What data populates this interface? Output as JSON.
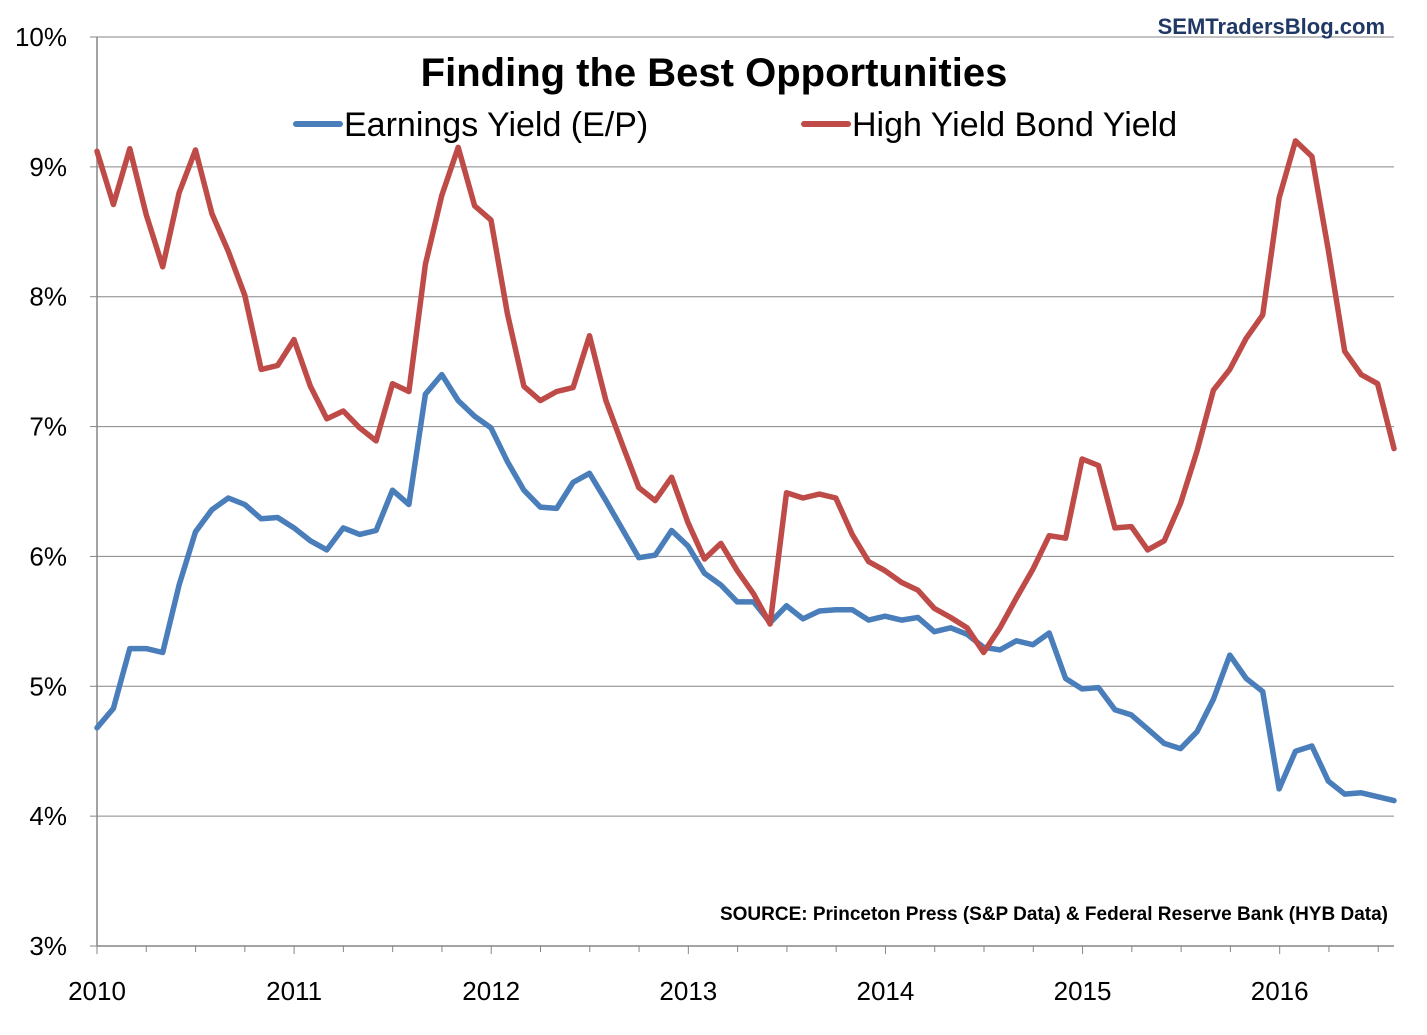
{
  "chart_data": {
    "type": "line",
    "title": "Finding the Best Opportunities",
    "brand": "SEMTradersBlog.com",
    "source": "SOURCE: Princeton Press (S&P Data) & Federal Reserve Bank (HYB Data)",
    "xlabel": "",
    "ylabel": "",
    "ylim": [
      3,
      10
    ],
    "xlim": [
      2010,
      2016.58
    ],
    "y_ticks": [
      "3%",
      "4%",
      "5%",
      "6%",
      "7%",
      "8%",
      "9%",
      "10%"
    ],
    "x_ticks": [
      "2010",
      "2011",
      "2012",
      "2013",
      "2014",
      "2015",
      "2016"
    ],
    "grid": true,
    "legend_position": "top",
    "series": [
      {
        "name": "Earnings Yield (E/P)",
        "color": "#4a7ebb",
        "values": [
          4.68,
          4.83,
          5.29,
          5.29,
          5.26,
          5.78,
          6.19,
          6.36,
          6.45,
          6.4,
          6.29,
          6.3,
          6.22,
          6.12,
          6.05,
          6.22,
          6.17,
          6.2,
          6.51,
          6.4,
          7.25,
          7.4,
          7.2,
          7.08,
          6.99,
          6.73,
          6.51,
          6.38,
          6.37,
          6.57,
          6.64,
          6.43,
          6.21,
          5.99,
          6.01,
          6.2,
          6.08,
          5.87,
          5.78,
          5.65,
          5.65,
          5.49,
          5.62,
          5.52,
          5.58,
          5.59,
          5.59,
          5.51,
          5.54,
          5.51,
          5.53,
          5.42,
          5.45,
          5.4,
          5.3,
          5.28,
          5.35,
          5.32,
          5.41,
          5.06,
          4.98,
          4.99,
          4.82,
          4.78,
          4.67,
          4.56,
          4.52,
          4.65,
          4.9,
          5.24,
          5.06,
          4.96,
          4.21,
          4.5,
          4.54,
          4.27,
          4.17,
          4.18,
          4.15,
          4.12
        ]
      },
      {
        "name": "High Yield Bond Yield",
        "color": "#be4b48",
        "values": [
          9.12,
          8.71,
          9.14,
          8.63,
          8.23,
          8.8,
          9.13,
          8.64,
          8.35,
          8.01,
          7.44,
          7.47,
          7.67,
          7.31,
          7.06,
          7.12,
          6.99,
          6.89,
          7.33,
          7.27,
          8.25,
          8.78,
          9.15,
          8.7,
          8.59,
          7.87,
          7.31,
          7.2,
          7.27,
          7.3,
          7.7,
          7.2,
          6.86,
          6.53,
          6.43,
          6.61,
          6.26,
          5.98,
          6.1,
          5.89,
          5.71,
          5.48,
          6.49,
          6.45,
          6.48,
          6.45,
          6.17,
          5.96,
          5.89,
          5.8,
          5.74,
          5.6,
          5.53,
          5.45,
          5.26,
          5.45,
          5.68,
          5.9,
          6.16,
          6.14,
          6.75,
          6.7,
          6.22,
          6.23,
          6.05,
          6.12,
          6.41,
          6.81,
          7.28,
          7.44,
          7.68,
          7.86,
          8.76,
          9.2,
          9.08,
          8.36,
          7.58,
          7.4,
          7.33,
          6.83
        ]
      }
    ]
  }
}
